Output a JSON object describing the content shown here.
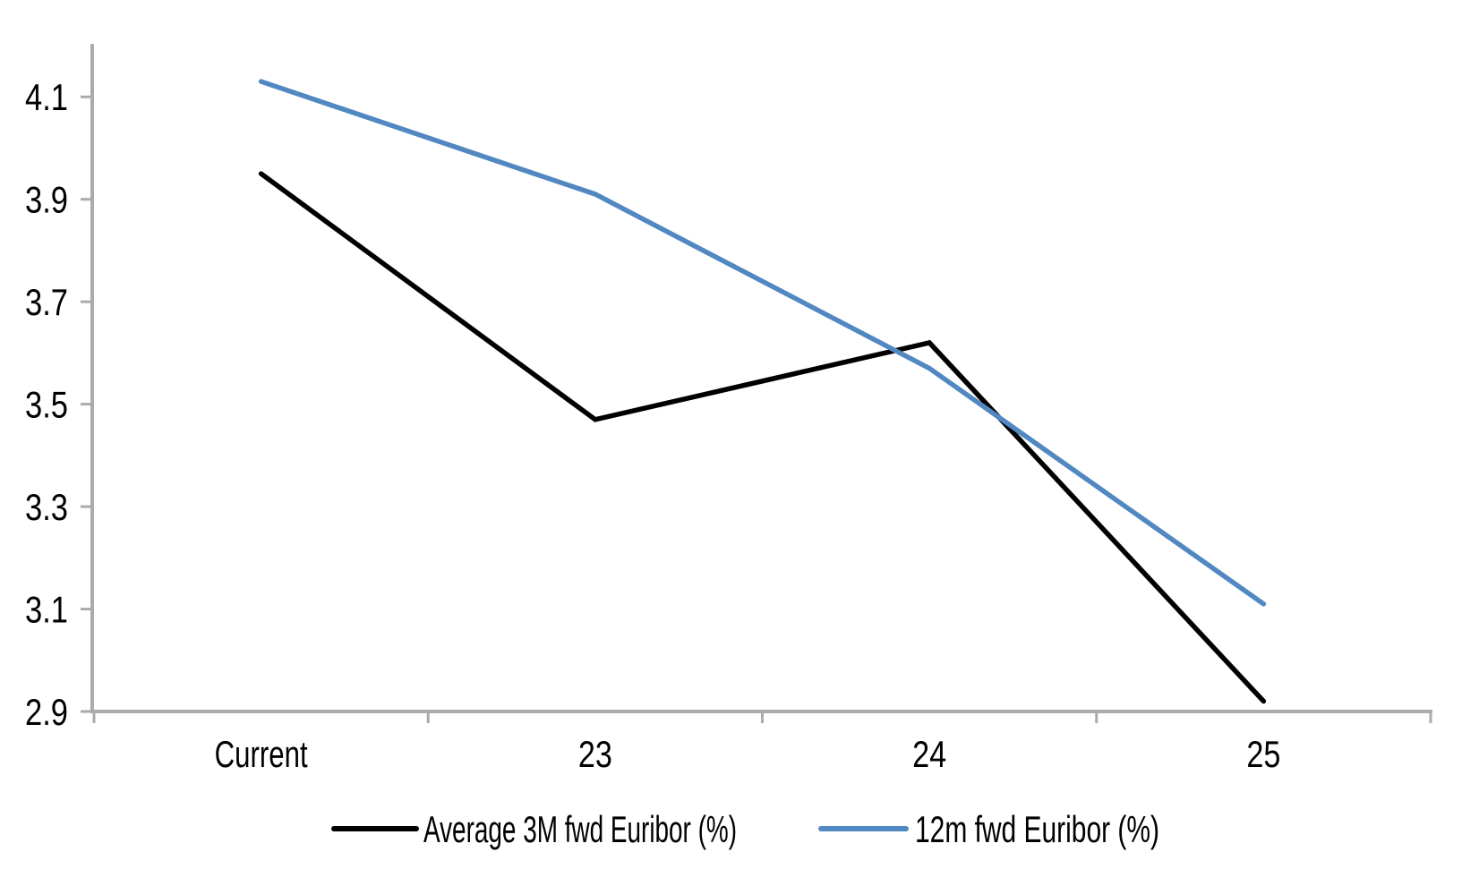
{
  "chart_data": {
    "type": "line",
    "title": "",
    "xlabel": "",
    "ylabel": "",
    "categories": [
      "Current",
      "23",
      "24",
      "25"
    ],
    "series": [
      {
        "name": "Average 3M fwd Euribor (%)",
        "color": "#000000",
        "values": [
          3.95,
          3.47,
          3.62,
          2.92
        ]
      },
      {
        "name": "12m fwd Euribor (%)",
        "color": "#5288C1",
        "values": [
          4.13,
          3.91,
          3.57,
          3.11
        ]
      }
    ],
    "y_ticks": [
      "2.9",
      "3.1",
      "3.3",
      "3.5",
      "3.7",
      "3.9",
      "4.1"
    ],
    "ylim": [
      2.9,
      4.2
    ],
    "grid": false,
    "legend_position": "bottom",
    "axis_color": "#ABABAB",
    "label_color": "#000000",
    "background_color": "#FFFFFF"
  }
}
